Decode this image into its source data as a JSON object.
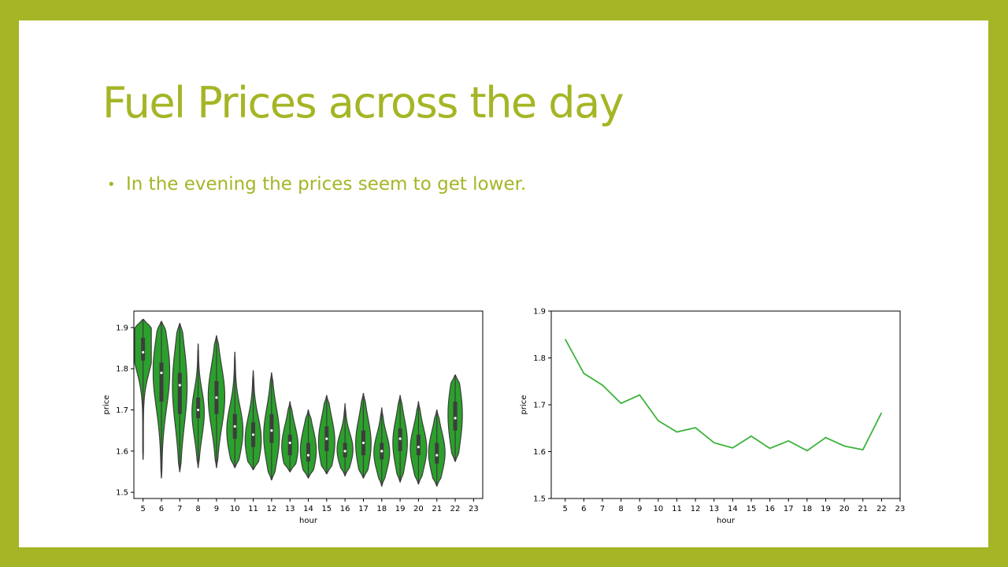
{
  "slide": {
    "title": "Fuel Prices across the day",
    "bullets": [
      "In the evening the prices seem to get lower."
    ]
  },
  "colors": {
    "frame": "#a5b525",
    "title": "#a5b525",
    "violin_fill": "#2ca02c",
    "line": "#3cb33c"
  },
  "chart_data": [
    {
      "type": "violin",
      "xlabel": "hour",
      "ylabel": "price",
      "categories": [
        "5",
        "6",
        "7",
        "8",
        "9",
        "10",
        "11",
        "12",
        "13",
        "14",
        "15",
        "16",
        "17",
        "18",
        "19",
        "20",
        "21",
        "22",
        "23"
      ],
      "ylim": [
        1.485,
        1.94
      ],
      "yticks": [
        1.5,
        1.6,
        1.7,
        1.8,
        1.9
      ],
      "grid": false,
      "series": [
        {
          "hour": "5",
          "min": 1.58,
          "q1": 1.82,
          "median": 1.84,
          "q3": 1.875,
          "max": 1.92,
          "modes": [
            [
              1.88,
              0.9
            ],
            [
              1.82,
              0.6
            ]
          ]
        },
        {
          "hour": "6",
          "min": 1.535,
          "q1": 1.72,
          "median": 1.79,
          "q3": 1.815,
          "max": 1.915,
          "modes": [
            [
              1.81,
              0.75
            ],
            [
              1.74,
              0.3
            ]
          ]
        },
        {
          "hour": "7",
          "min": 1.55,
          "q1": 1.69,
          "median": 1.76,
          "q3": 1.79,
          "max": 1.91,
          "modes": [
            [
              1.79,
              0.55
            ],
            [
              1.71,
              0.4
            ]
          ]
        },
        {
          "hour": "8",
          "min": 1.56,
          "q1": 1.68,
          "median": 1.7,
          "q3": 1.73,
          "max": 1.86,
          "modes": [
            [
              1.71,
              0.55
            ],
            [
              1.65,
              0.3
            ]
          ]
        },
        {
          "hour": "9",
          "min": 1.56,
          "q1": 1.69,
          "median": 1.73,
          "q3": 1.77,
          "max": 1.88,
          "modes": [
            [
              1.75,
              0.7
            ],
            [
              1.69,
              0.35
            ]
          ]
        },
        {
          "hour": "10",
          "min": 1.56,
          "q1": 1.63,
          "median": 1.66,
          "q3": 1.69,
          "max": 1.84,
          "modes": [
            [
              1.67,
              0.6
            ],
            [
              1.62,
              0.45
            ]
          ]
        },
        {
          "hour": "11",
          "min": 1.555,
          "q1": 1.61,
          "median": 1.64,
          "q3": 1.67,
          "max": 1.795,
          "modes": [
            [
              1.64,
              0.65
            ],
            [
              1.6,
              0.35
            ]
          ]
        },
        {
          "hour": "12",
          "min": 1.53,
          "q1": 1.62,
          "median": 1.65,
          "q3": 1.69,
          "max": 1.79,
          "modes": [
            [
              1.66,
              0.55
            ],
            [
              1.61,
              0.45
            ]
          ]
        },
        {
          "hour": "13",
          "min": 1.55,
          "q1": 1.59,
          "median": 1.62,
          "q3": 1.64,
          "max": 1.72,
          "modes": [
            [
              1.63,
              0.55
            ],
            [
              1.59,
              0.5
            ]
          ]
        },
        {
          "hour": "14",
          "min": 1.535,
          "q1": 1.575,
          "median": 1.59,
          "q3": 1.62,
          "max": 1.7,
          "modes": [
            [
              1.63,
              0.5
            ],
            [
              1.58,
              0.6
            ]
          ]
        },
        {
          "hour": "15",
          "min": 1.545,
          "q1": 1.6,
          "median": 1.63,
          "q3": 1.66,
          "max": 1.735,
          "modes": [
            [
              1.64,
              0.65
            ],
            [
              1.59,
              0.4
            ]
          ]
        },
        {
          "hour": "16",
          "min": 1.54,
          "q1": 1.585,
          "median": 1.6,
          "q3": 1.62,
          "max": 1.715,
          "modes": [
            [
              1.62,
              0.55
            ],
            [
              1.585,
              0.5
            ]
          ]
        },
        {
          "hour": "17",
          "min": 1.535,
          "q1": 1.59,
          "median": 1.62,
          "q3": 1.65,
          "max": 1.74,
          "modes": [
            [
              1.64,
              0.55
            ],
            [
              1.59,
              0.45
            ]
          ]
        },
        {
          "hour": "18",
          "min": 1.515,
          "q1": 1.58,
          "median": 1.6,
          "q3": 1.62,
          "max": 1.705,
          "modes": [
            [
              1.615,
              0.55
            ],
            [
              1.575,
              0.5
            ]
          ]
        },
        {
          "hour": "19",
          "min": 1.525,
          "q1": 1.6,
          "median": 1.63,
          "q3": 1.655,
          "max": 1.735,
          "modes": [
            [
              1.64,
              0.55
            ],
            [
              1.59,
              0.4
            ]
          ]
        },
        {
          "hour": "20",
          "min": 1.52,
          "q1": 1.59,
          "median": 1.61,
          "q3": 1.64,
          "max": 1.72,
          "modes": [
            [
              1.625,
              0.55
            ],
            [
              1.585,
              0.5
            ]
          ]
        },
        {
          "hour": "21",
          "min": 1.515,
          "q1": 1.57,
          "median": 1.59,
          "q3": 1.62,
          "max": 1.7,
          "modes": [
            [
              1.615,
              0.55
            ],
            [
              1.575,
              0.5
            ]
          ]
        },
        {
          "hour": "22",
          "min": 1.575,
          "q1": 1.65,
          "median": 1.68,
          "q3": 1.72,
          "max": 1.785,
          "modes": [
            [
              1.72,
              0.55
            ],
            [
              1.645,
              0.45
            ]
          ]
        }
      ]
    },
    {
      "type": "line",
      "xlabel": "hour",
      "ylabel": "price",
      "x": [
        5,
        6,
        7,
        8,
        9,
        10,
        11,
        12,
        13,
        14,
        15,
        16,
        17,
        18,
        19,
        20,
        21,
        22
      ],
      "xticks": [
        5,
        6,
        7,
        8,
        9,
        10,
        11,
        12,
        13,
        14,
        15,
        16,
        17,
        18,
        19,
        20,
        21,
        22,
        23
      ],
      "values": [
        1.84,
        1.767,
        1.742,
        1.703,
        1.721,
        1.666,
        1.642,
        1.651,
        1.619,
        1.608,
        1.633,
        1.607,
        1.623,
        1.602,
        1.63,
        1.612,
        1.604,
        1.683
      ],
      "ylim": [
        1.5,
        1.9
      ],
      "xlim": [
        4.25,
        23
      ],
      "yticks": [
        1.5,
        1.6,
        1.7,
        1.8,
        1.9
      ],
      "grid": false
    }
  ]
}
